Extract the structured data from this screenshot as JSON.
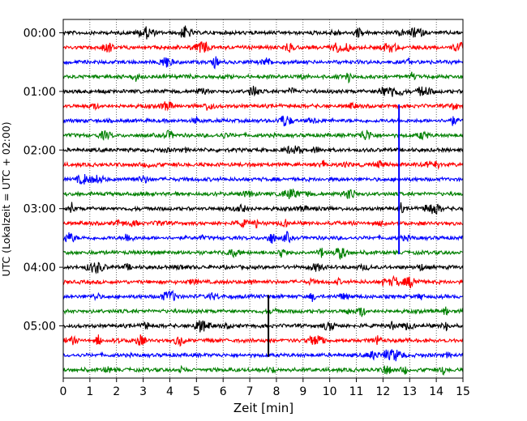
{
  "chart_data": {
    "type": "line",
    "title": "",
    "xlabel": "Zeit  [min]",
    "ylabel": "UTC (Lokalzeit = UTC + 02:00)",
    "xlim": [
      0,
      15
    ],
    "x_ticks": [
      "0",
      "1",
      "2",
      "3",
      "4",
      "5",
      "6",
      "7",
      "8",
      "9",
      "10",
      "11",
      "12",
      "13",
      "14",
      "15"
    ],
    "y_tick_labels": [
      "00:00",
      "01:00",
      "02:00",
      "03:00",
      "04:00",
      "05:00"
    ],
    "y_tick_rows": [
      0,
      4,
      8,
      12,
      16,
      20
    ],
    "rows_count": 24,
    "minutes_per_row": 15,
    "grid": "vertical dotted lines at each minute",
    "legend": "none",
    "colors": [
      "#000000",
      "#ff0000",
      "#0000ff",
      "#008000"
    ],
    "color_cycle": [
      "black",
      "red",
      "blue",
      "green"
    ],
    "notable_spikes": [
      {
        "row": 5,
        "minute": 12.6,
        "color": "#0000ff",
        "description": "tall blue spike spanning to row 15"
      },
      {
        "row": 20,
        "minute": 7.7,
        "color": "#000000",
        "description": "tall black spike spanning rows 18 to 22"
      }
    ]
  }
}
